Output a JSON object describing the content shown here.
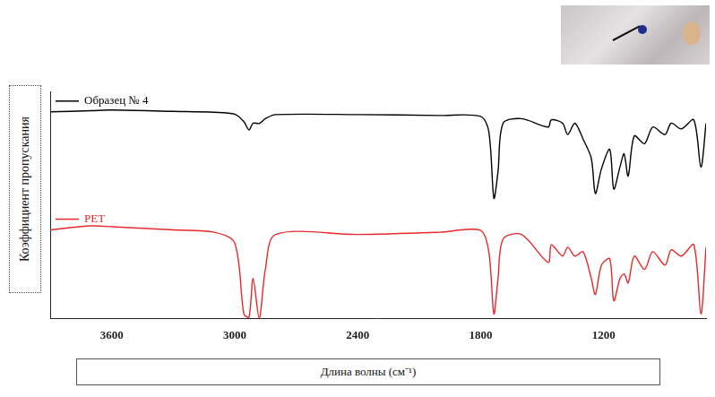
{
  "chart_data": {
    "type": "line",
    "x_label": "Длина волны (см⁻¹)",
    "y_label": "Коэффициент пропускания",
    "xlim": [
      3900,
      700
    ],
    "xticks": [
      3600,
      3000,
      2400,
      1800,
      1200
    ],
    "ylim": [
      0,
      100
    ],
    "tick_labels": "x",
    "grid": false,
    "x": [
      3900,
      3700,
      3600,
      3300,
      3100,
      3000,
      2955,
      2930,
      2910,
      2880,
      2850,
      2800,
      2400,
      2000,
      1800,
      1760,
      1735,
      1715,
      1690,
      1600,
      1470,
      1455,
      1400,
      1375,
      1340,
      1300,
      1260,
      1240,
      1210,
      1170,
      1150,
      1120,
      1100,
      1080,
      1050,
      1000,
      960,
      900,
      870,
      820,
      760,
      725,
      700
    ],
    "series": [
      {
        "name": "Образец № 4",
        "color": "#000000",
        "values": [
          91,
          91.5,
          91.8,
          91.2,
          90.8,
          90,
          86.7,
          83,
          86,
          85.9,
          88,
          89.8,
          89.8,
          89.4,
          89,
          82.4,
          53,
          64.7,
          86,
          88,
          84.3,
          87.5,
          86,
          81,
          86,
          79,
          70.6,
          55,
          66,
          74.5,
          57,
          66.7,
          72.5,
          62.7,
          80.4,
          77,
          84.3,
          81,
          86,
          83.5,
          87.5,
          66.7,
          86
        ]
      },
      {
        "name": "PET",
        "color": "#e8282b",
        "values": [
          39,
          40.8,
          40.4,
          39,
          38,
          33.3,
          2,
          0.5,
          17.6,
          0,
          21.6,
          37,
          37,
          38,
          38.8,
          29.4,
          2,
          17.6,
          35,
          37,
          24.7,
          32.5,
          27.5,
          31.4,
          27.5,
          29.4,
          17.6,
          10.6,
          23.5,
          26.3,
          7.8,
          17.6,
          19.6,
          15.7,
          27.5,
          21.6,
          29.4,
          23.5,
          30.2,
          27.5,
          32.5,
          2,
          31.4
        ]
      }
    ]
  }
}
